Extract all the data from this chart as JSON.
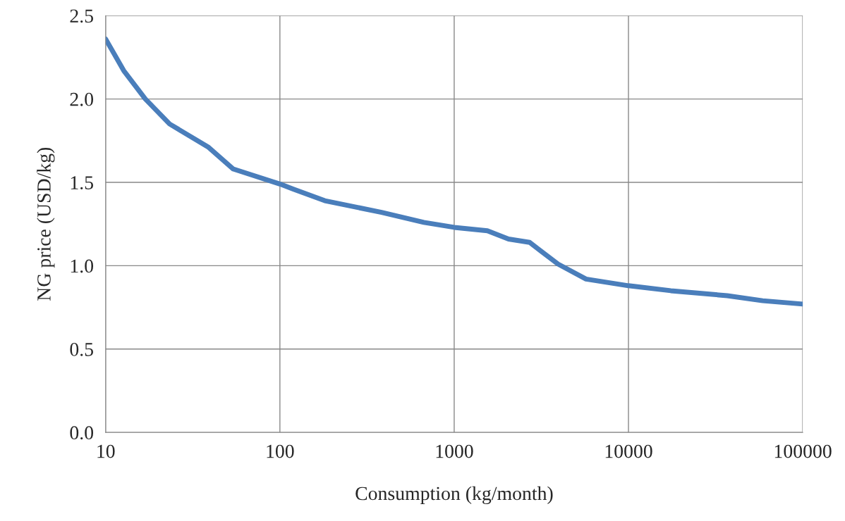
{
  "chart_data": {
    "type": "line",
    "xlabel": "Consumption (kg/month)",
    "ylabel": "NG price (USD/kg)",
    "log": "x",
    "grid": true,
    "marker": "none",
    "line_style": "solid",
    "xlim": [
      10,
      100000
    ],
    "xticks": [
      10,
      100,
      1000,
      10000,
      100000
    ],
    "ylim": [
      0,
      2.5
    ],
    "yticks": [
      {
        "value": 0,
        "label": "0.0"
      },
      {
        "value": 0.5,
        "label": "0.5"
      },
      {
        "value": 1,
        "label": "1.0"
      },
      {
        "value": 1.5,
        "label": "1.5"
      },
      {
        "value": 2,
        "label": "2.0"
      },
      {
        "value": 2.5,
        "label": "2.5"
      }
    ],
    "series": [
      {
        "color": "#4a7ebb",
        "x": [
          10,
          12.7,
          16.9,
          23.3,
          39,
          54,
          100,
          119,
          181,
          383,
          670,
          1000,
          1550,
          2050,
          2710,
          3940,
          5710,
          10000,
          17500,
          36900,
          58900,
          100000
        ],
        "values": [
          2.36,
          2.17,
          2.0,
          1.85,
          1.71,
          1.58,
          1.49,
          1.46,
          1.39,
          1.32,
          1.26,
          1.23,
          1.21,
          1.16,
          1.14,
          1.01,
          0.92,
          0.88,
          0.85,
          0.82,
          0.79,
          0.77
        ]
      }
    ]
  }
}
